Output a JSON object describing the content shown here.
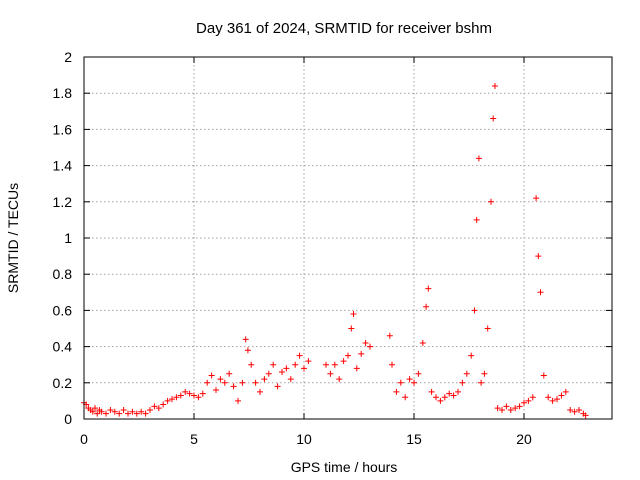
{
  "chart_data": {
    "type": "scatter",
    "title": "Day 361 of 2024, SRMTID for receiver bshm",
    "xlabel": "GPS time / hours",
    "ylabel": "SRMTID / TECUs",
    "xlim": [
      0,
      24
    ],
    "ylim": [
      0,
      2
    ],
    "xticks": [
      0,
      5,
      10,
      15,
      20
    ],
    "xtick_labels": [
      "0",
      "5",
      "10",
      "15",
      "20"
    ],
    "yticks": [
      0,
      0.2,
      0.4,
      0.6,
      0.8,
      1,
      1.2,
      1.4,
      1.6,
      1.8,
      2
    ],
    "ytick_labels": [
      "0",
      "0.2",
      "0.4",
      "0.6",
      "0.8",
      "1",
      "1.2",
      "1.4",
      "1.6",
      "1.8",
      "2"
    ],
    "grid": true,
    "marker": "+",
    "color": "#ff0000",
    "series": [
      {
        "name": "SRMTID",
        "points": [
          [
            0.0,
            0.09
          ],
          [
            0.1,
            0.08
          ],
          [
            0.2,
            0.06
          ],
          [
            0.3,
            0.05
          ],
          [
            0.4,
            0.04
          ],
          [
            0.5,
            0.06
          ],
          [
            0.6,
            0.03
          ],
          [
            0.7,
            0.05
          ],
          [
            0.8,
            0.04
          ],
          [
            1.0,
            0.03
          ],
          [
            1.2,
            0.05
          ],
          [
            1.4,
            0.04
          ],
          [
            1.6,
            0.03
          ],
          [
            1.8,
            0.05
          ],
          [
            2.0,
            0.03
          ],
          [
            2.2,
            0.04
          ],
          [
            2.4,
            0.03
          ],
          [
            2.6,
            0.04
          ],
          [
            2.8,
            0.03
          ],
          [
            3.0,
            0.05
          ],
          [
            3.2,
            0.07
          ],
          [
            3.4,
            0.06
          ],
          [
            3.6,
            0.08
          ],
          [
            3.8,
            0.1
          ],
          [
            4.0,
            0.11
          ],
          [
            4.2,
            0.12
          ],
          [
            4.4,
            0.13
          ],
          [
            4.6,
            0.15
          ],
          [
            4.8,
            0.14
          ],
          [
            5.0,
            0.13
          ],
          [
            5.2,
            0.12
          ],
          [
            5.4,
            0.14
          ],
          [
            5.6,
            0.2
          ],
          [
            5.8,
            0.24
          ],
          [
            6.0,
            0.16
          ],
          [
            6.2,
            0.22
          ],
          [
            6.4,
            0.2
          ],
          [
            6.6,
            0.25
          ],
          [
            6.8,
            0.18
          ],
          [
            7.0,
            0.1
          ],
          [
            7.2,
            0.2
          ],
          [
            7.35,
            0.44
          ],
          [
            7.45,
            0.38
          ],
          [
            7.6,
            0.3
          ],
          [
            7.8,
            0.2
          ],
          [
            8.0,
            0.15
          ],
          [
            8.2,
            0.22
          ],
          [
            8.4,
            0.25
          ],
          [
            8.6,
            0.3
          ],
          [
            8.8,
            0.18
          ],
          [
            9.0,
            0.26
          ],
          [
            9.2,
            0.28
          ],
          [
            9.4,
            0.22
          ],
          [
            9.6,
            0.3
          ],
          [
            9.8,
            0.35
          ],
          [
            10.0,
            0.28
          ],
          [
            10.2,
            0.32
          ],
          [
            11.0,
            0.3
          ],
          [
            11.2,
            0.25
          ],
          [
            11.4,
            0.3
          ],
          [
            11.6,
            0.22
          ],
          [
            11.8,
            0.32
          ],
          [
            12.0,
            0.35
          ],
          [
            12.15,
            0.5
          ],
          [
            12.25,
            0.58
          ],
          [
            12.4,
            0.28
          ],
          [
            12.6,
            0.36
          ],
          [
            12.8,
            0.42
          ],
          [
            13.0,
            0.4
          ],
          [
            13.9,
            0.46
          ],
          [
            14.0,
            0.3
          ],
          [
            14.2,
            0.15
          ],
          [
            14.4,
            0.2
          ],
          [
            14.6,
            0.12
          ],
          [
            14.8,
            0.22
          ],
          [
            15.0,
            0.2
          ],
          [
            15.2,
            0.25
          ],
          [
            15.4,
            0.42
          ],
          [
            15.55,
            0.62
          ],
          [
            15.65,
            0.72
          ],
          [
            15.8,
            0.15
          ],
          [
            16.0,
            0.12
          ],
          [
            16.2,
            0.1
          ],
          [
            16.4,
            0.12
          ],
          [
            16.6,
            0.14
          ],
          [
            16.8,
            0.13
          ],
          [
            17.0,
            0.15
          ],
          [
            17.2,
            0.2
          ],
          [
            17.4,
            0.25
          ],
          [
            17.6,
            0.35
          ],
          [
            17.75,
            0.6
          ],
          [
            17.85,
            1.1
          ],
          [
            17.95,
            1.44
          ],
          [
            18.05,
            0.2
          ],
          [
            18.2,
            0.25
          ],
          [
            18.35,
            0.5
          ],
          [
            18.5,
            1.2
          ],
          [
            18.6,
            1.66
          ],
          [
            18.68,
            1.84
          ],
          [
            18.8,
            0.06
          ],
          [
            19.0,
            0.05
          ],
          [
            19.2,
            0.07
          ],
          [
            19.4,
            0.05
          ],
          [
            19.6,
            0.06
          ],
          [
            19.8,
            0.07
          ],
          [
            20.0,
            0.09
          ],
          [
            20.2,
            0.1
          ],
          [
            20.4,
            0.12
          ],
          [
            20.55,
            1.22
          ],
          [
            20.65,
            0.9
          ],
          [
            20.75,
            0.7
          ],
          [
            20.9,
            0.24
          ],
          [
            21.1,
            0.12
          ],
          [
            21.3,
            0.1
          ],
          [
            21.5,
            0.11
          ],
          [
            21.7,
            0.13
          ],
          [
            21.9,
            0.15
          ],
          [
            22.1,
            0.05
          ],
          [
            22.3,
            0.04
          ],
          [
            22.5,
            0.05
          ],
          [
            22.7,
            0.03
          ],
          [
            22.8,
            0.02
          ]
        ]
      }
    ]
  }
}
